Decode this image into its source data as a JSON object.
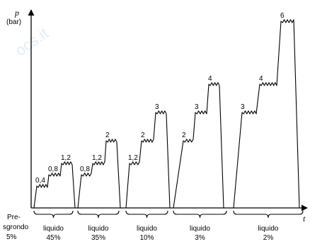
{
  "chart_data": {
    "type": "line",
    "ylabel": "p",
    "ylabel_unit": "(bar)",
    "xlabel": "t",
    "watermark": "ocs.it",
    "pre_phase": {
      "line1": "Pre-",
      "line2": "sgrondo",
      "line3": "5%"
    },
    "cycles": [
      {
        "label": "liquido",
        "percent": "45%",
        "steps": [
          {
            "value": 0.4,
            "label": "0,4"
          },
          {
            "value": 0.8,
            "label": "0,8"
          },
          {
            "value": 1.2,
            "label": "1,2"
          }
        ]
      },
      {
        "label": "liquido",
        "percent": "35%",
        "steps": [
          {
            "value": 0.8,
            "label": "0,8"
          },
          {
            "value": 1.2,
            "label": "1,2"
          },
          {
            "value": 2,
            "label": "2"
          }
        ]
      },
      {
        "label": "liquido",
        "percent": "10%",
        "steps": [
          {
            "value": 1.2,
            "label": "1,2"
          },
          {
            "value": 2,
            "label": "2"
          },
          {
            "value": 3,
            "label": "3"
          }
        ]
      },
      {
        "label": "liquido",
        "percent": "3%",
        "steps": [
          {
            "value": 2,
            "label": "2"
          },
          {
            "value": 3,
            "label": "3"
          },
          {
            "value": 4,
            "label": "4"
          }
        ]
      },
      {
        "label": "liquido",
        "percent": "2%",
        "steps": [
          {
            "value": 3,
            "label": "3"
          },
          {
            "value": 4,
            "label": "4"
          },
          {
            "value": 6,
            "label": "6"
          }
        ]
      }
    ]
  }
}
